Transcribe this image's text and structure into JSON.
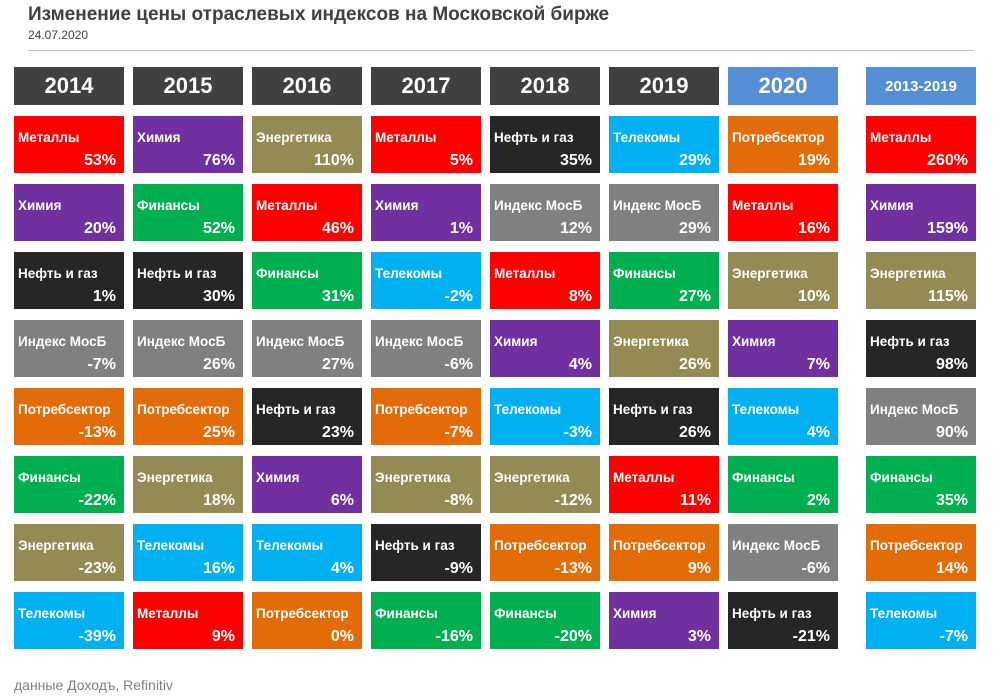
{
  "chart_data": {
    "type": "ranked-table",
    "title": "Изменение цены отраслевых индексов на Московской бирже",
    "subtitle": "24.07.2020",
    "source": "данные Доходъ, Refinitiv",
    "sector_colors": {
      "Металлы": "#ff0000",
      "Химия": "#7030a0",
      "Нефть и газ": "#262626",
      "Индекс МосБ": "#808080",
      "Потребсектор": "#e36c09",
      "Финансы": "#00b050",
      "Энергетика": "#948a54",
      "Телекомы": "#00b0f0"
    },
    "columns": [
      {
        "label": "2014",
        "color": "#404040",
        "sectors": [
          "Металлы",
          "Химия",
          "Нефть и газ",
          "Индекс МосБ",
          "Потребсектор",
          "Финансы",
          "Энергетика",
          "Телекомы"
        ],
        "values": [
          53,
          20,
          1,
          -7,
          -13,
          -22,
          -23,
          -39
        ],
        "value_labels": [
          "53%",
          "20%",
          "1%",
          "-7%",
          "-13%",
          "-22%",
          "-23%",
          "-39%"
        ]
      },
      {
        "label": "2015",
        "color": "#404040",
        "sectors": [
          "Химия",
          "Финансы",
          "Нефть и газ",
          "Индекс МосБ",
          "Потребсектор",
          "Энергетика",
          "Телекомы",
          "Металлы"
        ],
        "values": [
          76,
          52,
          30,
          26,
          25,
          18,
          16,
          9
        ],
        "value_labels": [
          "76%",
          "52%",
          "30%",
          "26%",
          "25%",
          "18%",
          "16%",
          "9%"
        ]
      },
      {
        "label": "2016",
        "color": "#404040",
        "sectors": [
          "Энергетика",
          "Металлы",
          "Финансы",
          "Индекс МосБ",
          "Нефть и газ",
          "Химия",
          "Телекомы",
          "Потребсектор"
        ],
        "values": [
          110,
          46,
          31,
          27,
          23,
          6,
          4,
          0
        ],
        "value_labels": [
          "110%",
          "46%",
          "31%",
          "27%",
          "23%",
          "6%",
          "4%",
          "0%"
        ]
      },
      {
        "label": "2017",
        "color": "#404040",
        "sectors": [
          "Металлы",
          "Химия",
          "Телекомы",
          "Индекс МосБ",
          "Потребсектор",
          "Энергетика",
          "Нефть и газ",
          "Финансы"
        ],
        "values": [
          5,
          1,
          -2,
          -6,
          -7,
          -8,
          -9,
          -16
        ],
        "value_labels": [
          "5%",
          "1%",
          "-2%",
          "-6%",
          "-7%",
          "-8%",
          "-9%",
          "-16%"
        ]
      },
      {
        "label": "2018",
        "color": "#404040",
        "sectors": [
          "Нефть и газ",
          "Индекс МосБ",
          "Металлы",
          "Химия",
          "Телекомы",
          "Энергетика",
          "Потребсектор",
          "Финансы"
        ],
        "values": [
          35,
          12,
          8,
          4,
          -3,
          -12,
          -13,
          -20
        ],
        "value_labels": [
          "35%",
          "12%",
          "8%",
          "4%",
          "-3%",
          "-12%",
          "-13%",
          "-20%"
        ]
      },
      {
        "label": "2019",
        "color": "#404040",
        "sectors": [
          "Телекомы",
          "Индекс МосБ",
          "Финансы",
          "Энергетика",
          "Нефть и газ",
          "Металлы",
          "Потребсектор",
          "Химия"
        ],
        "values": [
          29,
          29,
          27,
          26,
          26,
          11,
          9,
          3
        ],
        "value_labels": [
          "29%",
          "29%",
          "27%",
          "26%",
          "26%",
          "11%",
          "9%",
          "3%"
        ]
      },
      {
        "label": "2020",
        "color": "#558ed5",
        "sectors": [
          "Потребсектор",
          "Металлы",
          "Энергетика",
          "Химия",
          "Телекомы",
          "Финансы",
          "Индекс МосБ",
          "Нефть и газ"
        ],
        "values": [
          19,
          16,
          10,
          7,
          4,
          2,
          -6,
          -21
        ],
        "value_labels": [
          "19%",
          "16%",
          "10%",
          "7%",
          "4%",
          "2%",
          "-6%",
          "-21%"
        ]
      },
      {
        "label": "2013-2019",
        "color": "#558ed5",
        "sectors": [
          "Металлы",
          "Химия",
          "Энергетика",
          "Нефть и газ",
          "Индекс МосБ",
          "Финансы",
          "Потребсектор",
          "Телекомы"
        ],
        "values": [
          260,
          159,
          115,
          98,
          90,
          35,
          14,
          -7
        ],
        "value_labels": [
          "260%",
          "159%",
          "115%",
          "98%",
          "90%",
          "35%",
          "14%",
          "-7%"
        ]
      }
    ]
  }
}
